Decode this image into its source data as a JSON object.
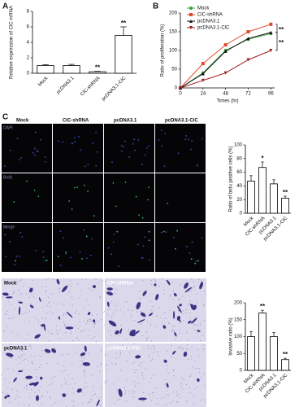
{
  "panel_labels": [
    "A",
    "B",
    "C"
  ],
  "fluorescence": {
    "columns": [
      "Mock",
      "ClC-shRNA",
      "pcDNA3.1",
      "pcDNA3.1-ClC"
    ],
    "rows": [
      "DAPI",
      "BrdU",
      "Merge"
    ]
  },
  "invasion": {
    "labels": [
      "Mock",
      "ClC-shRNA",
      "pcDNA3.1",
      "pcDNA3.1-ClC"
    ]
  },
  "chart_data": [
    {
      "type": "bar",
      "y_label": "Relative expression of ClC mRNA",
      "categories": [
        "Mock",
        "pcDNA3.1",
        "ClC-shRNA",
        "pcDNA3.1-ClC"
      ],
      "values": [
        1.0,
        1.0,
        0.2,
        4.9
      ],
      "errors": [
        0.1,
        0.15,
        0.05,
        1.1
      ],
      "significance": [
        null,
        null,
        "**",
        "**"
      ],
      "ylim": [
        0,
        8
      ],
      "yticks": [
        0,
        2,
        4,
        6,
        8
      ],
      "color": "#ffffff"
    },
    {
      "type": "line",
      "x_label": "Times (hr)",
      "y_label": "Ratio of proliferation (%)",
      "x": [
        0,
        24,
        48,
        72,
        96
      ],
      "series": [
        {
          "name": "Mock",
          "color": "#3aa33a",
          "marker": "circle",
          "values": [
            0,
            40,
            100,
            130,
            145
          ]
        },
        {
          "name": "ClC-shRNA",
          "color": "#e04a2a",
          "marker": "square",
          "values": [
            0,
            65,
            115,
            150,
            170
          ]
        },
        {
          "name": "pcDNA3.1",
          "color": "#111111",
          "marker": "triangle",
          "values": [
            0,
            38,
            98,
            132,
            148
          ]
        },
        {
          "name": "pcDNA3.1-ClC",
          "color": "#9a1c1c",
          "marker": "triangle-down",
          "values": [
            0,
            20,
            40,
            75,
            100
          ]
        }
      ],
      "annotations": [
        "**",
        "**"
      ],
      "xlim": [
        0,
        100
      ],
      "xticks": [
        0,
        24,
        48,
        72,
        96
      ],
      "ylim": [
        0,
        200
      ],
      "yticks": [
        0,
        50,
        100,
        150,
        200
      ],
      "legend": "upper-left"
    },
    {
      "type": "bar",
      "y_label": "Ratio of brdu positive cells (%)",
      "categories": [
        "Mock",
        "ClC-shRNA",
        "pcDNA3.1",
        "pcDNA3.1-ClC"
      ],
      "values": [
        47,
        67,
        43,
        22
      ],
      "errors": [
        8,
        8,
        6,
        3
      ],
      "significance": [
        null,
        "*",
        null,
        "**"
      ],
      "ylim": [
        0,
        100
      ],
      "yticks": [
        0,
        20,
        40,
        60,
        80,
        100
      ],
      "color": "#ffffff"
    },
    {
      "type": "bar",
      "y_label": "Invasive ratio (%)",
      "categories": [
        "Mock",
        "ClC-shRNA",
        "pcDNA3.1",
        "pcDNA3.1-ClC"
      ],
      "values": [
        100,
        170,
        100,
        32
      ],
      "errors": [
        15,
        8,
        12,
        4
      ],
      "significance": [
        null,
        "**",
        null,
        "**"
      ],
      "ylim": [
        0,
        200
      ],
      "yticks": [
        0,
        50,
        100,
        150,
        200
      ],
      "color": "#ffffff"
    }
  ]
}
